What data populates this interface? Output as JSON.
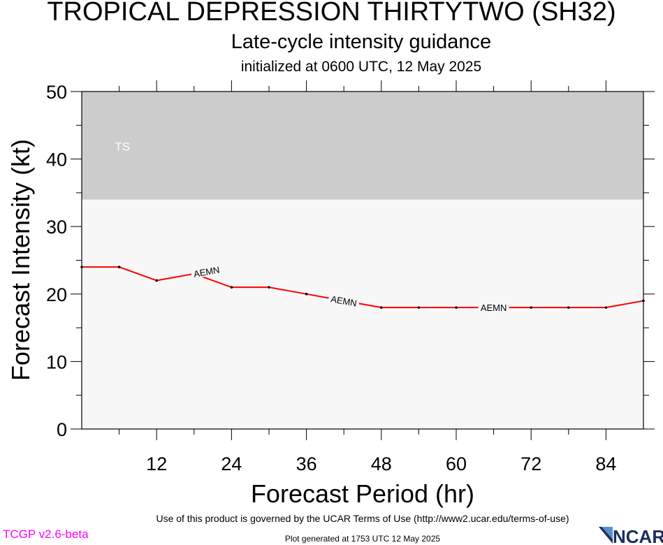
{
  "header": {
    "title": "TROPICAL DEPRESSION THIRTYTWO (SH32)",
    "subtitle": "Late-cycle intensity guidance",
    "init": "initialized at 0600 UTC, 12 May 2025"
  },
  "footer": {
    "terms": "Use of this product is governed by the UCAR Terms of Use (http://www2.ucar.edu/terms-of-use)",
    "version": "TCGP v2.6-beta",
    "generated": "Plot generated at 1753 UTC   12 May 2025",
    "logo_text": "NCAR"
  },
  "colors": {
    "plot_background": "#f7f7f7",
    "ts_band": "#cccccc",
    "series_line": "#ff0000",
    "ts_label": "#ffffff",
    "version_text": "#ff00ff",
    "logo": "#1c2e5e"
  },
  "chart_data": {
    "type": "line",
    "title": "TROPICAL DEPRESSION THIRTYTWO (SH32)",
    "subtitle": "Late-cycle intensity guidance",
    "xlabel": "Forecast Period (hr)",
    "ylabel": "Forecast Intensity (kt)",
    "xlim": [
      0,
      90
    ],
    "ylim": [
      0,
      50
    ],
    "xticks": [
      12,
      24,
      36,
      48,
      60,
      72,
      84
    ],
    "yticks": [
      0,
      10,
      20,
      30,
      40,
      50
    ],
    "x_minor_tick_step": 6,
    "y_minor_tick_step": 5,
    "grid": false,
    "bands": [
      {
        "label": "TS",
        "y_from": 34,
        "y_to": 50
      }
    ],
    "series": [
      {
        "name": "AEMN",
        "x": [
          0,
          6,
          12,
          18,
          24,
          30,
          36,
          42,
          48,
          54,
          60,
          66,
          72,
          78,
          84,
          90
        ],
        "values": [
          24,
          24,
          22,
          23,
          21,
          21,
          20,
          19,
          18,
          18,
          18,
          18,
          18,
          18,
          18,
          19
        ]
      }
    ]
  }
}
